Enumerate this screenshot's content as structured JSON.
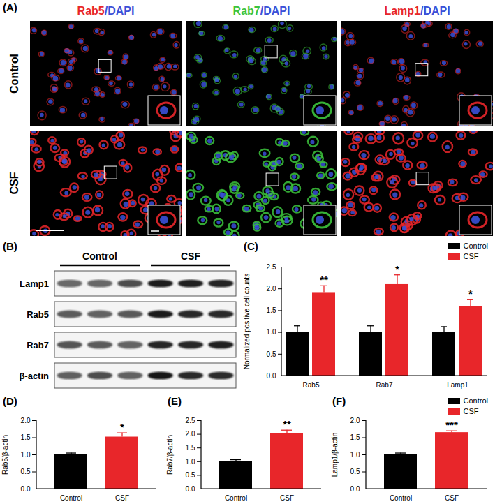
{
  "images": {
    "title": "(A)",
    "columns": [
      [
        {
          "text": "Rab5",
          "color": "#e8262a"
        },
        {
          "text": "/DAPI",
          "color": "#3a50d8"
        }
      ],
      [
        {
          "text": "Rab7",
          "color": "#3cc43c"
        },
        {
          "text": "/DAPI",
          "color": "#3a50d8"
        }
      ],
      [
        {
          "text": "Lamp1",
          "color": "#e8262a"
        },
        {
          "text": "/DAPI",
          "color": "#3a50d8"
        }
      ]
    ],
    "rows": [
      "Control",
      "CSF"
    ]
  },
  "blot": {
    "title": "(B)",
    "groups": [
      "Control",
      "CSF"
    ],
    "lanes_per_group": 3,
    "rows": [
      "Lamp1",
      "Rab5",
      "Rab7",
      "β-actin"
    ]
  },
  "chart_data": [
    {
      "type": "bar",
      "title": "(C)",
      "categories": [
        "Rab5",
        "Rab7",
        "Lamp1"
      ],
      "series": [
        {
          "name": "Control",
          "color": "#000000",
          "values": [
            1.0,
            1.0,
            1.0
          ],
          "errors": [
            0.15,
            0.15,
            0.13
          ]
        },
        {
          "name": "CSF",
          "color": "#e8262a",
          "values": [
            1.9,
            2.1,
            1.6
          ],
          "errors": [
            0.17,
            0.22,
            0.15
          ]
        }
      ],
      "ylabel": "Normalized positive cell counts",
      "ylim": [
        0,
        2.5
      ],
      "yticks": [
        {
          "value": 0,
          "label": "0.0"
        },
        0.5,
        {
          "value": 1,
          "label": "1.0"
        },
        1.5,
        {
          "value": 2,
          "label": "2.0"
        },
        2.5
      ],
      "legend": "top-right",
      "annotations": [
        {
          "category": "Rab5",
          "series": "CSF",
          "text": "**"
        },
        {
          "category": "Rab7",
          "series": "CSF",
          "text": "*"
        },
        {
          "category": "Lamp1",
          "series": "CSF",
          "text": "*"
        }
      ]
    },
    {
      "type": "bar",
      "title": "(D)",
      "categories": [
        "Control",
        "CSF"
      ],
      "values": [
        1.0,
        1.52
      ],
      "errors": [
        0.05,
        0.12
      ],
      "colors": [
        "#000000",
        "#e8262a"
      ],
      "ylabel": "Rab5/β-actin",
      "ylim": [
        0,
        2
      ],
      "yticks": [
        {
          "value": 0,
          "label": "0.0"
        },
        0.5,
        {
          "value": 1,
          "label": "1.0"
        },
        1.5,
        {
          "value": 2,
          "label": "2.0"
        }
      ],
      "annotations": [
        {
          "category": "CSF",
          "text": "*"
        }
      ]
    },
    {
      "type": "bar",
      "title": "(E)",
      "categories": [
        "Control",
        "CSF"
      ],
      "values": [
        1.0,
        2.02
      ],
      "errors": [
        0.07,
        0.13
      ],
      "colors": [
        "#000000",
        "#e8262a"
      ],
      "ylabel": "Rab7/β-actin",
      "ylim": [
        0,
        2.5
      ],
      "yticks": [
        {
          "value": 0,
          "label": "0.0"
        },
        0.5,
        {
          "value": 1,
          "label": "1.0"
        },
        1.5,
        {
          "value": 2,
          "label": "2.0"
        },
        2.5
      ],
      "annotations": [
        {
          "category": "CSF",
          "text": "**"
        }
      ]
    },
    {
      "type": "bar",
      "title": "(F)",
      "categories": [
        "Control",
        "CSF"
      ],
      "values": [
        1.0,
        1.65
      ],
      "errors": [
        0.05,
        0.05
      ],
      "colors": [
        "#000000",
        "#e8262a"
      ],
      "ylabel": "Lamp1/β-actin",
      "ylim": [
        0,
        2
      ],
      "yticks": [
        {
          "value": 0,
          "label": "0.0"
        },
        0.5,
        {
          "value": 1,
          "label": "1.0"
        },
        1.5,
        {
          "value": 2,
          "label": "2.0"
        }
      ],
      "legend": "top-right",
      "annotations": [
        {
          "category": "CSF",
          "text": "***"
        }
      ]
    }
  ]
}
